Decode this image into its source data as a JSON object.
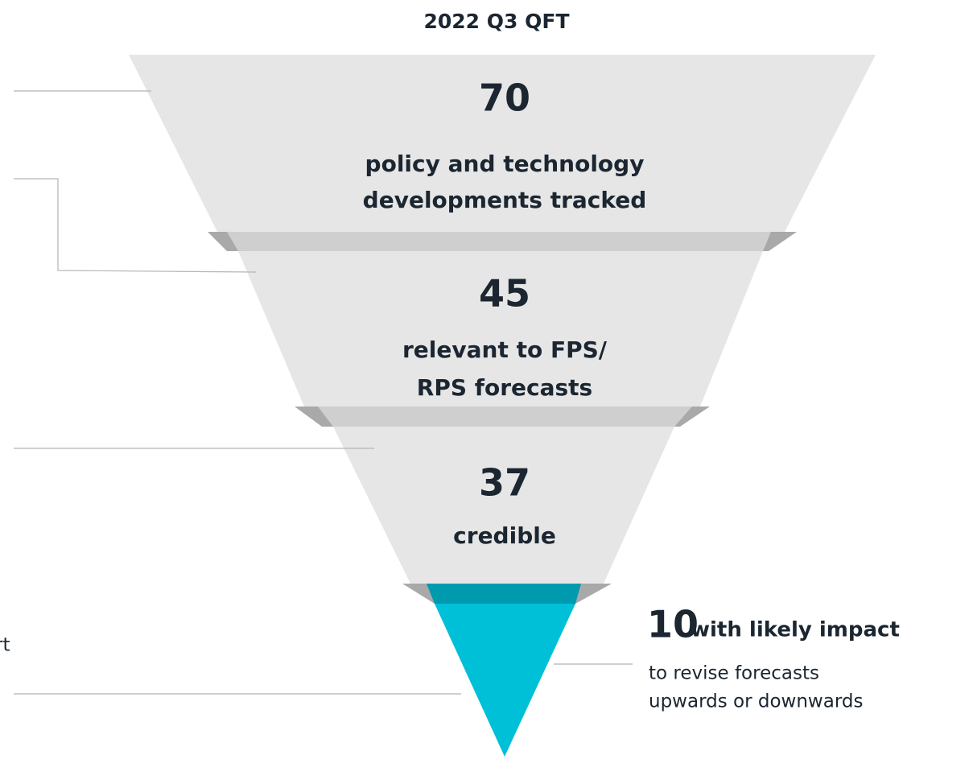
{
  "title": "2022 Q3 QFT",
  "stages": [
    {
      "number": "70",
      "lines": [
        "policy and technology",
        "developments tracked"
      ]
    },
    {
      "number": "45",
      "lines": [
        "relevant to FPS/",
        "RPS forecasts"
      ]
    },
    {
      "number": "37",
      "lines": [
        "credible"
      ]
    }
  ],
  "final": {
    "number": "10",
    "headline": "with likely impact",
    "lines": [
      "to revise forecasts",
      "upwards or downwards"
    ]
  },
  "left_fragment": "rt"
}
